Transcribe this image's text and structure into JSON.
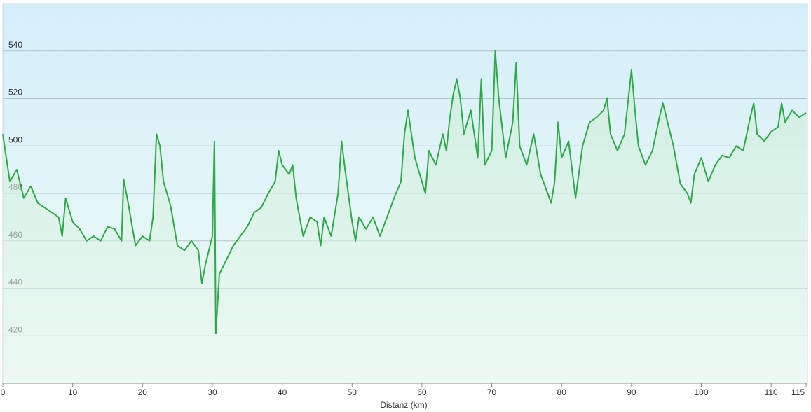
{
  "chart_data": {
    "type": "line",
    "x_label": "Distanz  (km)",
    "color": "#2ea84a",
    "grid": true,
    "xlim": [
      0,
      115
    ],
    "xticks": [
      0,
      10,
      20,
      30,
      40,
      50,
      60,
      70,
      80,
      90,
      100,
      110,
      115
    ],
    "ylim": [
      400,
      560
    ],
    "yticks": [
      420,
      440,
      460,
      480,
      500,
      520,
      540
    ],
    "x": [
      0,
      1,
      2,
      3,
      4,
      5,
      6,
      7,
      8,
      8.5,
      9,
      10,
      11,
      12,
      13,
      14,
      15,
      16,
      17,
      17.3,
      18,
      19,
      20,
      21,
      21.5,
      22,
      22.5,
      23,
      24,
      25,
      26,
      27,
      28,
      28.5,
      29,
      30,
      30.3,
      30.5,
      31,
      32,
      33,
      34,
      35,
      36,
      37,
      38,
      39,
      39.5,
      40,
      41,
      41.5,
      42,
      43,
      44,
      45,
      45.5,
      46,
      47,
      48,
      48.5,
      49,
      50,
      50.5,
      51,
      52,
      53,
      54,
      55,
      56,
      57,
      57.5,
      58,
      59,
      60,
      60.5,
      61,
      62,
      63,
      63.5,
      64,
      64.5,
      65,
      65.5,
      66,
      67,
      68,
      68.5,
      69,
      70,
      70.5,
      71,
      72,
      73,
      73.5,
      74,
      75,
      76,
      77,
      78,
      78.5,
      79,
      79.5,
      80,
      81,
      82,
      83,
      84,
      85,
      86,
      86.5,
      87,
      88,
      89,
      90,
      90.5,
      91,
      92,
      93,
      94,
      94.5,
      95,
      96,
      97,
      98,
      98.5,
      99,
      100,
      101,
      102,
      103,
      104,
      105,
      106,
      107,
      107.5,
      108,
      109,
      110,
      111,
      111.5,
      112,
      113,
      114,
      115
    ],
    "values": [
      505,
      485,
      490,
      478,
      483,
      476,
      474,
      472,
      470,
      462,
      478,
      468,
      465,
      460,
      462,
      460,
      466,
      465,
      460,
      486,
      475,
      458,
      462,
      460,
      470,
      505,
      500,
      485,
      475,
      458,
      456,
      460,
      456,
      442,
      450,
      462,
      502,
      421,
      446,
      452,
      458,
      462,
      466,
      472,
      474,
      480,
      485,
      498,
      492,
      488,
      492,
      478,
      462,
      470,
      468,
      458,
      470,
      462,
      480,
      502,
      490,
      468,
      460,
      470,
      465,
      470,
      462,
      470,
      478,
      485,
      505,
      515,
      495,
      485,
      480,
      498,
      492,
      505,
      498,
      512,
      522,
      528,
      520,
      505,
      515,
      495,
      528,
      492,
      498,
      540,
      520,
      495,
      510,
      535,
      500,
      492,
      505,
      488,
      480,
      476,
      485,
      510,
      495,
      502,
      478,
      500,
      510,
      512,
      515,
      520,
      505,
      498,
      505,
      532,
      515,
      500,
      492,
      498,
      512,
      518,
      512,
      500,
      484,
      480,
      476,
      488,
      495,
      485,
      492,
      496,
      495,
      500,
      498,
      512,
      518,
      505,
      502,
      506,
      508,
      518,
      510,
      515,
      512,
      514
    ]
  }
}
